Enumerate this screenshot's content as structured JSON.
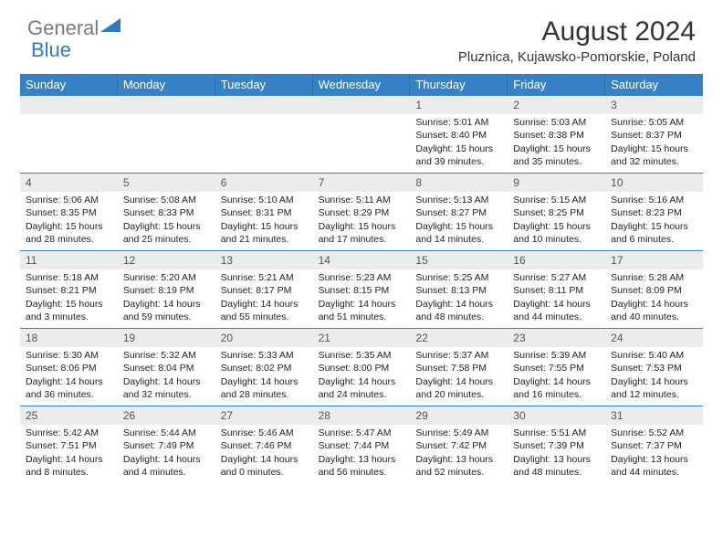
{
  "brand": {
    "part1": "General",
    "part2": "Blue"
  },
  "header": {
    "title": "August 2024",
    "location": "Pluznica, Kujawsko-Pomorskie, Poland"
  },
  "colors": {
    "header_bg": "#3682c4",
    "header_text": "#ffffff",
    "daynum_bg": "#ececec",
    "border": "#3682c4",
    "text": "#222222"
  },
  "weekdays": [
    "Sunday",
    "Monday",
    "Tuesday",
    "Wednesday",
    "Thursday",
    "Friday",
    "Saturday"
  ],
  "weeks": [
    [
      {
        "n": "",
        "sr": "",
        "ss": "",
        "dl": ""
      },
      {
        "n": "",
        "sr": "",
        "ss": "",
        "dl": ""
      },
      {
        "n": "",
        "sr": "",
        "ss": "",
        "dl": ""
      },
      {
        "n": "",
        "sr": "",
        "ss": "",
        "dl": ""
      },
      {
        "n": "1",
        "sr": "Sunrise: 5:01 AM",
        "ss": "Sunset: 8:40 PM",
        "dl": "Daylight: 15 hours and 39 minutes."
      },
      {
        "n": "2",
        "sr": "Sunrise: 5:03 AM",
        "ss": "Sunset: 8:38 PM",
        "dl": "Daylight: 15 hours and 35 minutes."
      },
      {
        "n": "3",
        "sr": "Sunrise: 5:05 AM",
        "ss": "Sunset: 8:37 PM",
        "dl": "Daylight: 15 hours and 32 minutes."
      }
    ],
    [
      {
        "n": "4",
        "sr": "Sunrise: 5:06 AM",
        "ss": "Sunset: 8:35 PM",
        "dl": "Daylight: 15 hours and 28 minutes."
      },
      {
        "n": "5",
        "sr": "Sunrise: 5:08 AM",
        "ss": "Sunset: 8:33 PM",
        "dl": "Daylight: 15 hours and 25 minutes."
      },
      {
        "n": "6",
        "sr": "Sunrise: 5:10 AM",
        "ss": "Sunset: 8:31 PM",
        "dl": "Daylight: 15 hours and 21 minutes."
      },
      {
        "n": "7",
        "sr": "Sunrise: 5:11 AM",
        "ss": "Sunset: 8:29 PM",
        "dl": "Daylight: 15 hours and 17 minutes."
      },
      {
        "n": "8",
        "sr": "Sunrise: 5:13 AM",
        "ss": "Sunset: 8:27 PM",
        "dl": "Daylight: 15 hours and 14 minutes."
      },
      {
        "n": "9",
        "sr": "Sunrise: 5:15 AM",
        "ss": "Sunset: 8:25 PM",
        "dl": "Daylight: 15 hours and 10 minutes."
      },
      {
        "n": "10",
        "sr": "Sunrise: 5:16 AM",
        "ss": "Sunset: 8:23 PM",
        "dl": "Daylight: 15 hours and 6 minutes."
      }
    ],
    [
      {
        "n": "11",
        "sr": "Sunrise: 5:18 AM",
        "ss": "Sunset: 8:21 PM",
        "dl": "Daylight: 15 hours and 3 minutes."
      },
      {
        "n": "12",
        "sr": "Sunrise: 5:20 AM",
        "ss": "Sunset: 8:19 PM",
        "dl": "Daylight: 14 hours and 59 minutes."
      },
      {
        "n": "13",
        "sr": "Sunrise: 5:21 AM",
        "ss": "Sunset: 8:17 PM",
        "dl": "Daylight: 14 hours and 55 minutes."
      },
      {
        "n": "14",
        "sr": "Sunrise: 5:23 AM",
        "ss": "Sunset: 8:15 PM",
        "dl": "Daylight: 14 hours and 51 minutes."
      },
      {
        "n": "15",
        "sr": "Sunrise: 5:25 AM",
        "ss": "Sunset: 8:13 PM",
        "dl": "Daylight: 14 hours and 48 minutes."
      },
      {
        "n": "16",
        "sr": "Sunrise: 5:27 AM",
        "ss": "Sunset: 8:11 PM",
        "dl": "Daylight: 14 hours and 44 minutes."
      },
      {
        "n": "17",
        "sr": "Sunrise: 5:28 AM",
        "ss": "Sunset: 8:09 PM",
        "dl": "Daylight: 14 hours and 40 minutes."
      }
    ],
    [
      {
        "n": "18",
        "sr": "Sunrise: 5:30 AM",
        "ss": "Sunset: 8:06 PM",
        "dl": "Daylight: 14 hours and 36 minutes."
      },
      {
        "n": "19",
        "sr": "Sunrise: 5:32 AM",
        "ss": "Sunset: 8:04 PM",
        "dl": "Daylight: 14 hours and 32 minutes."
      },
      {
        "n": "20",
        "sr": "Sunrise: 5:33 AM",
        "ss": "Sunset: 8:02 PM",
        "dl": "Daylight: 14 hours and 28 minutes."
      },
      {
        "n": "21",
        "sr": "Sunrise: 5:35 AM",
        "ss": "Sunset: 8:00 PM",
        "dl": "Daylight: 14 hours and 24 minutes."
      },
      {
        "n": "22",
        "sr": "Sunrise: 5:37 AM",
        "ss": "Sunset: 7:58 PM",
        "dl": "Daylight: 14 hours and 20 minutes."
      },
      {
        "n": "23",
        "sr": "Sunrise: 5:39 AM",
        "ss": "Sunset: 7:55 PM",
        "dl": "Daylight: 14 hours and 16 minutes."
      },
      {
        "n": "24",
        "sr": "Sunrise: 5:40 AM",
        "ss": "Sunset: 7:53 PM",
        "dl": "Daylight: 14 hours and 12 minutes."
      }
    ],
    [
      {
        "n": "25",
        "sr": "Sunrise: 5:42 AM",
        "ss": "Sunset: 7:51 PM",
        "dl": "Daylight: 14 hours and 8 minutes."
      },
      {
        "n": "26",
        "sr": "Sunrise: 5:44 AM",
        "ss": "Sunset: 7:49 PM",
        "dl": "Daylight: 14 hours and 4 minutes."
      },
      {
        "n": "27",
        "sr": "Sunrise: 5:46 AM",
        "ss": "Sunset: 7:46 PM",
        "dl": "Daylight: 14 hours and 0 minutes."
      },
      {
        "n": "28",
        "sr": "Sunrise: 5:47 AM",
        "ss": "Sunset: 7:44 PM",
        "dl": "Daylight: 13 hours and 56 minutes."
      },
      {
        "n": "29",
        "sr": "Sunrise: 5:49 AM",
        "ss": "Sunset: 7:42 PM",
        "dl": "Daylight: 13 hours and 52 minutes."
      },
      {
        "n": "30",
        "sr": "Sunrise: 5:51 AM",
        "ss": "Sunset: 7:39 PM",
        "dl": "Daylight: 13 hours and 48 minutes."
      },
      {
        "n": "31",
        "sr": "Sunrise: 5:52 AM",
        "ss": "Sunset: 7:37 PM",
        "dl": "Daylight: 13 hours and 44 minutes."
      }
    ]
  ]
}
